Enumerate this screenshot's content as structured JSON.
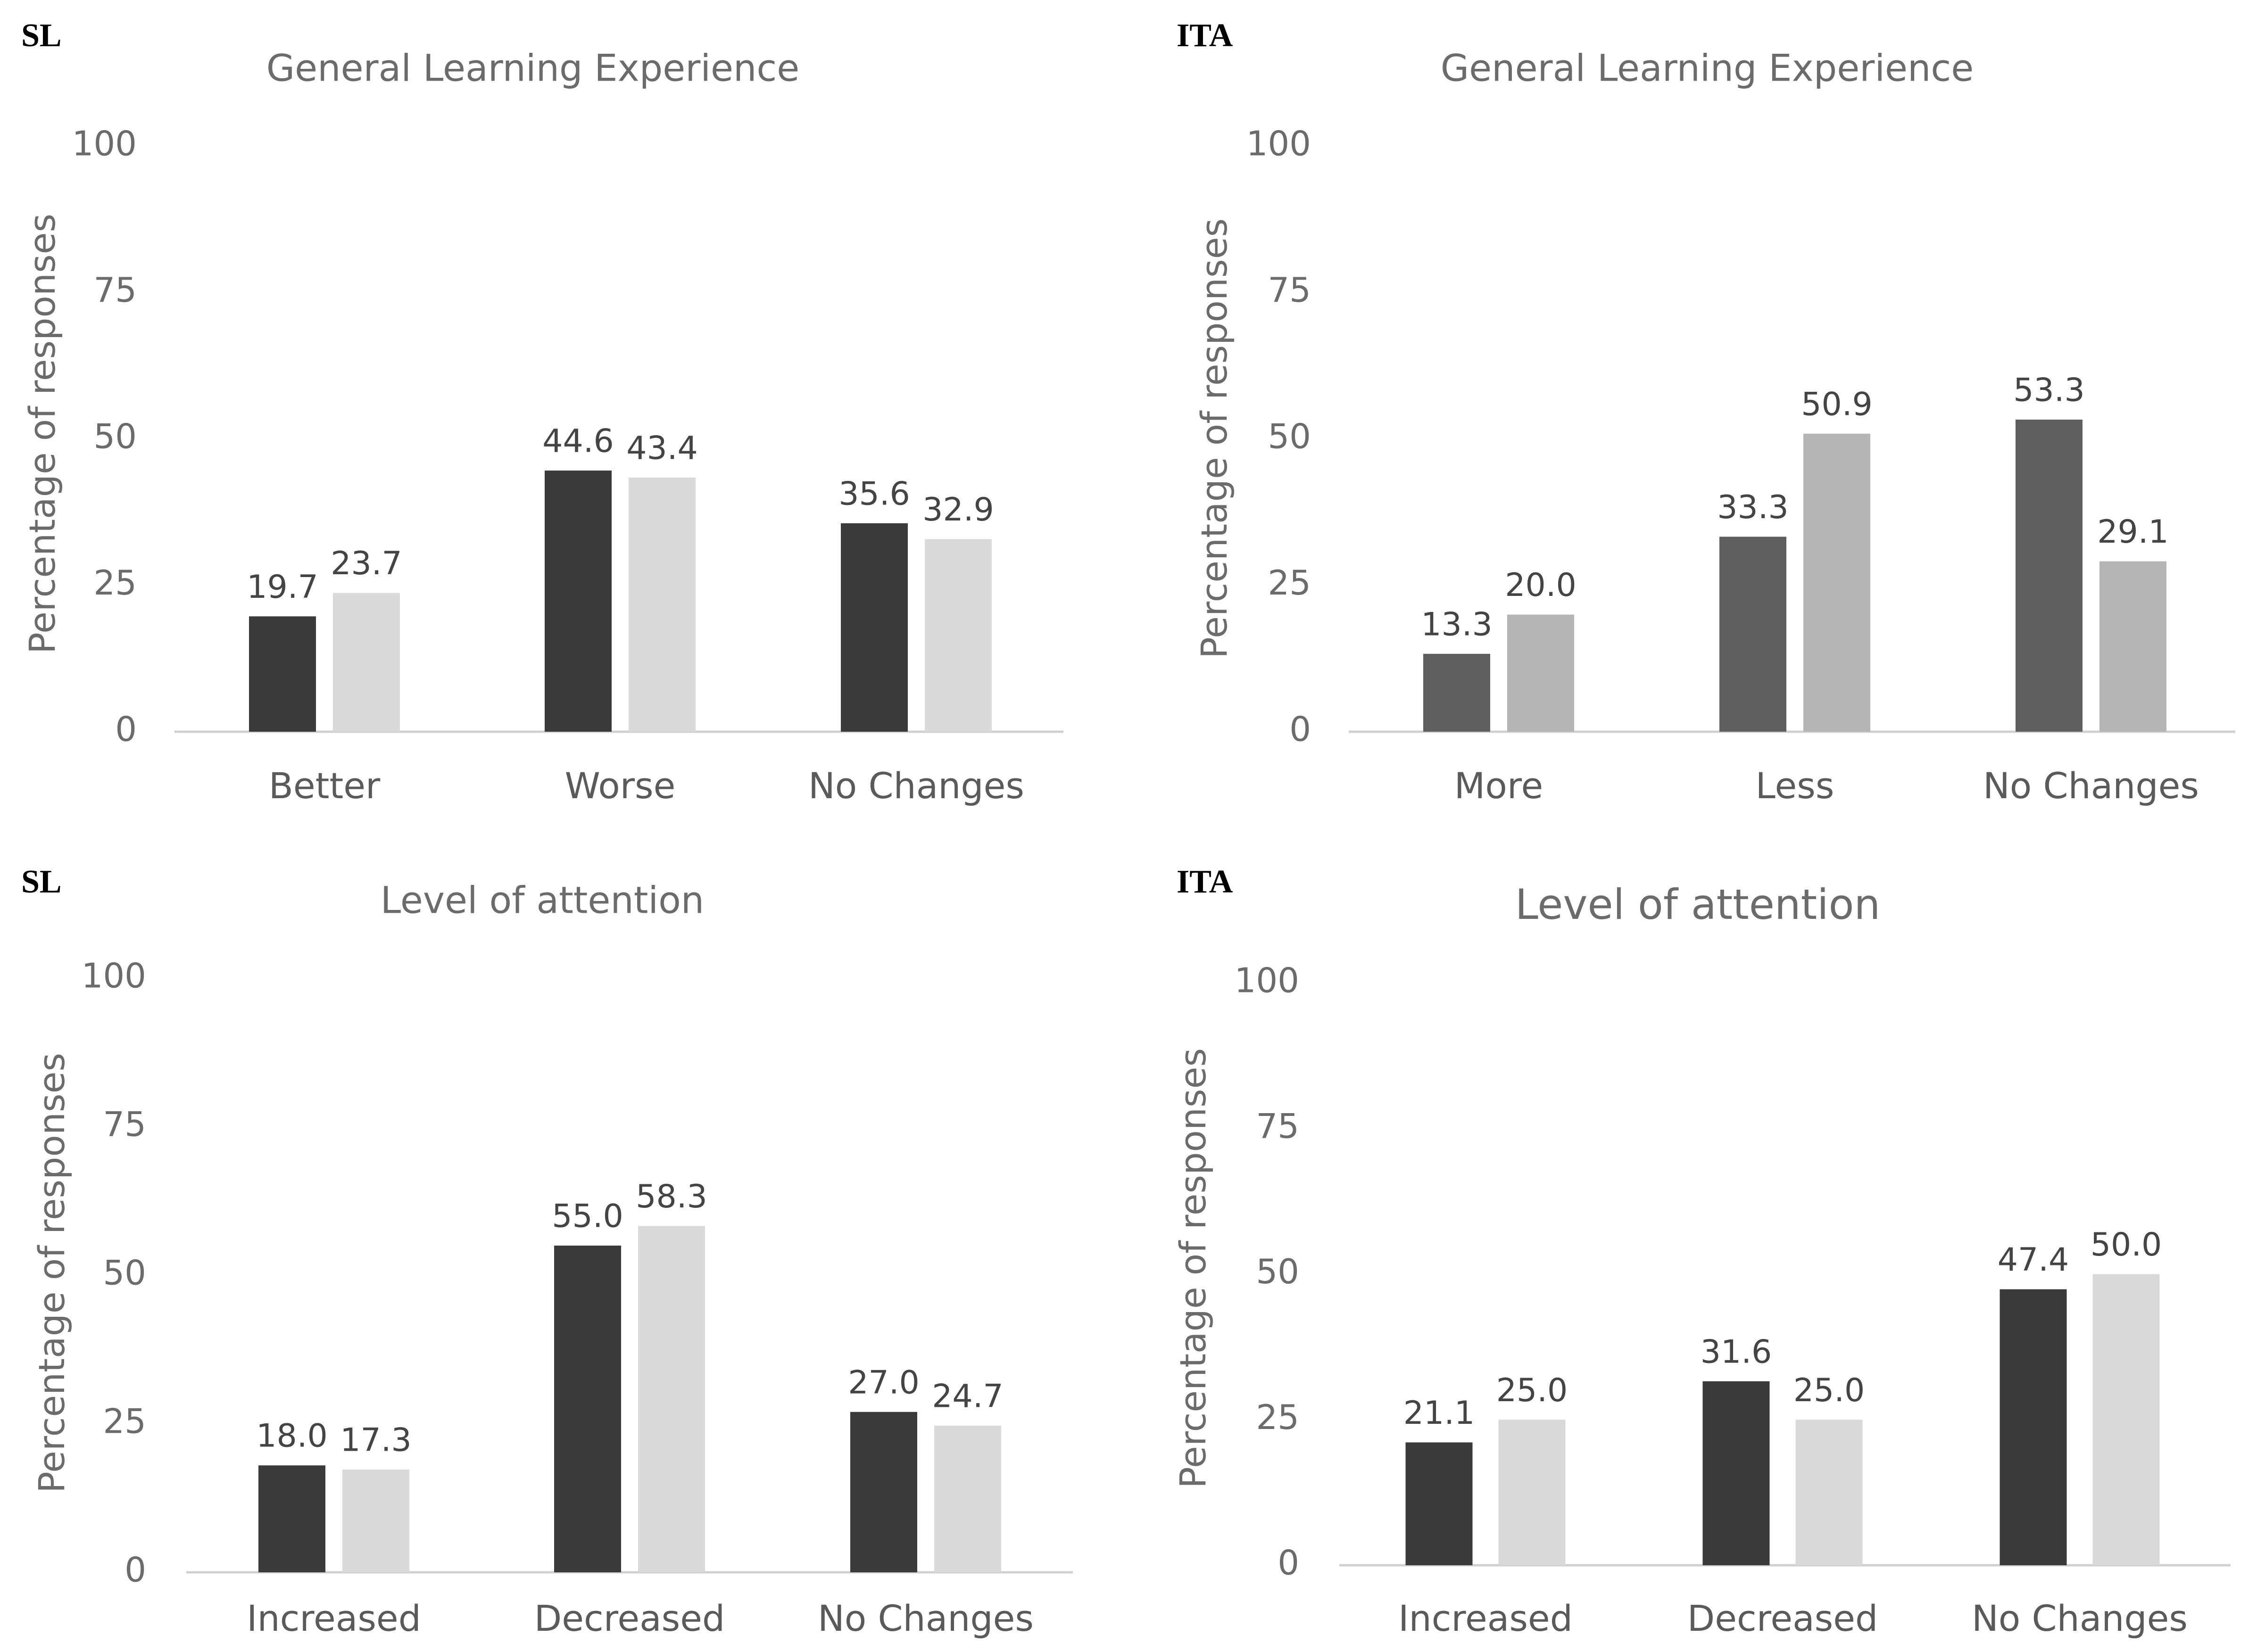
{
  "chart_data": [
    {
      "type": "bar",
      "panel_label": "SL",
      "title": "General Learning Experience",
      "xlabel": "",
      "ylabel": "Percentage of responses",
      "ylim": [
        0,
        100
      ],
      "yticks": [
        "0",
        "25",
        "50",
        "75",
        "100"
      ],
      "categories": [
        "Better",
        "Worse",
        "No Changes"
      ],
      "series": [
        {
          "name": "Series 1",
          "values": [
            19.7,
            44.6,
            35.6
          ],
          "labels": [
            "19.7",
            "44.6",
            "35.6"
          ],
          "color": "#3a3a3a"
        },
        {
          "name": "Series 2",
          "values": [
            23.7,
            43.4,
            32.9
          ],
          "labels": [
            "23.7",
            "43.4",
            "32.9"
          ],
          "color": "#d9d9d9"
        }
      ],
      "grid": false,
      "legend": "none"
    },
    {
      "type": "bar",
      "panel_label": "ITA",
      "title": "General Learning Experience",
      "xlabel": "",
      "ylabel": "Percentage of responses",
      "ylim": [
        0,
        100
      ],
      "yticks": [
        "0",
        "25",
        "50",
        "75",
        "100"
      ],
      "categories": [
        "More",
        "Less",
        "No Changes"
      ],
      "series": [
        {
          "name": "Series 1",
          "values": [
            13.3,
            33.3,
            53.3
          ],
          "labels": [
            "13.3",
            "33.3",
            "53.3"
          ],
          "color": "#5e5e5e"
        },
        {
          "name": "Series 2",
          "values": [
            20.0,
            50.9,
            29.1
          ],
          "labels": [
            "20.0",
            "50.9",
            "29.1"
          ],
          "color": "#b4b4b4"
        }
      ],
      "grid": false,
      "legend": "none"
    },
    {
      "type": "bar",
      "panel_label": "SL",
      "title": "Level of attention",
      "xlabel": "",
      "ylabel": "Percentage of responses",
      "ylim": [
        0,
        100
      ],
      "yticks": [
        "0",
        "25",
        "50",
        "75",
        "100"
      ],
      "categories": [
        "Increased",
        "Decreased",
        "No Changes"
      ],
      "series": [
        {
          "name": "Series 1",
          "values": [
            18.0,
            55.0,
            27.0
          ],
          "labels": [
            "18.0",
            "55.0",
            "27.0"
          ],
          "color": "#3a3a3a"
        },
        {
          "name": "Series 2",
          "values": [
            17.3,
            58.3,
            24.7
          ],
          "labels": [
            "17.3",
            "58.3",
            "24.7"
          ],
          "color": "#d9d9d9"
        }
      ],
      "grid": false,
      "legend": "none"
    },
    {
      "type": "bar",
      "panel_label": "ITA",
      "title": "Level of attention",
      "xlabel": "",
      "ylabel": "Percentage of responses",
      "ylim": [
        0,
        100
      ],
      "yticks": [
        "0",
        "25",
        "50",
        "75",
        "100"
      ],
      "categories": [
        "Increased",
        "Decreased",
        "No Changes"
      ],
      "series": [
        {
          "name": "Series 1",
          "values": [
            21.1,
            31.6,
            47.4
          ],
          "labels": [
            "21.1",
            "31.6",
            "47.4"
          ],
          "color": "#3a3a3a"
        },
        {
          "name": "Series 2",
          "values": [
            25.0,
            25.0,
            50.0
          ],
          "labels": [
            "25.0",
            "25.0",
            "50.0"
          ],
          "color": "#d9d9d9"
        }
      ],
      "grid": false,
      "legend": "none"
    }
  ]
}
